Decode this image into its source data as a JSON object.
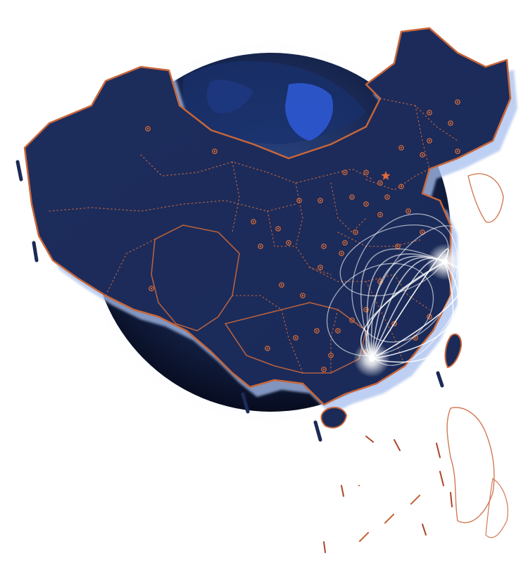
{
  "map": {
    "colors": {
      "background": "#ffffff",
      "land_fill": "#1b2a56",
      "land_fill_dark": "#142048",
      "border": "#c8663a",
      "province_dots": "#c8663a",
      "globe_edge": "#0a1026",
      "globe_glow": "#6b8fd6",
      "shadow_blue": "#a8c0ee",
      "ocean_highlight": "#2f5bd8",
      "arc_color": "#ffffff",
      "capital_star": "#e06a3a"
    },
    "icons": {
      "capital": "star-icon",
      "city": "city-dot-icon",
      "hub": "glow-hub-icon"
    },
    "hubs": [
      "hub-east",
      "hub-south"
    ],
    "arc_count": 12
  }
}
